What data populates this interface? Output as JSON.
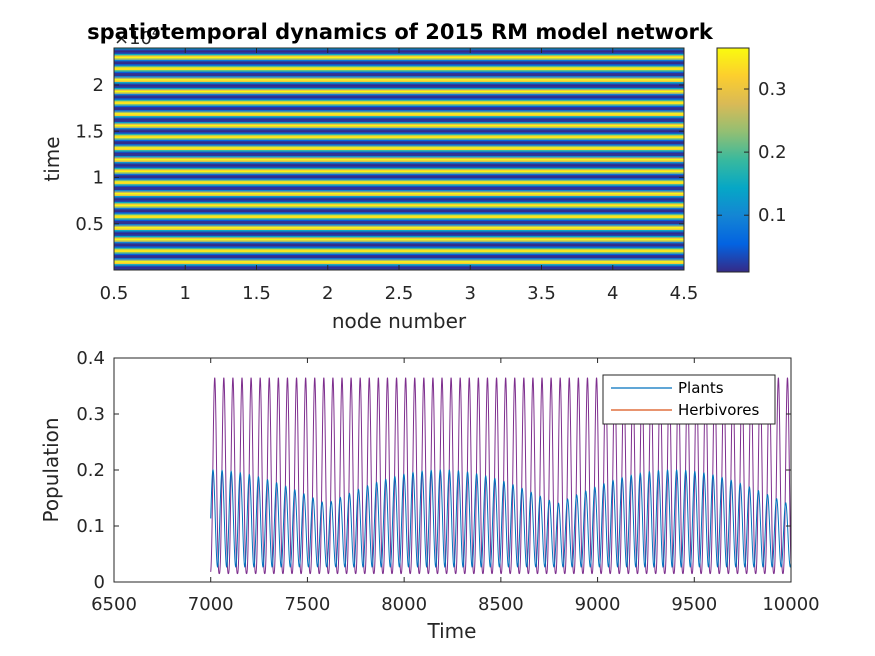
{
  "chart_data": [
    {
      "type": "heatmap",
      "title": "spatiotemporal dynamics of 2015 RM model network",
      "xlabel": "node number",
      "ylabel": "time",
      "y_exponent_label": "×10",
      "y_exponent": "4",
      "xlim": [
        0.5,
        4.5
      ],
      "ylim": [
        0,
        24000
      ],
      "x_ticks": [
        0.5,
        1,
        1.5,
        2,
        2.5,
        3,
        3.5,
        4,
        4.5
      ],
      "x_tick_labels": [
        "0.5",
        "1",
        "1.5",
        "2",
        "2.5",
        "3",
        "3.5",
        "4",
        "4.5"
      ],
      "y_ticks": [
        0.5,
        1,
        1.5,
        2
      ],
      "y_tick_labels": [
        "0.5",
        "1",
        "1.5",
        "2"
      ],
      "nodes": [
        1,
        2,
        3,
        4
      ],
      "colormap": "parula",
      "colorbar": {
        "range": [
          0.01,
          0.365
        ],
        "ticks": [
          0.1,
          0.2,
          0.3
        ],
        "tick_labels": [
          "0.1",
          "0.2",
          "0.3"
        ],
        "colors": [
          "#352a87",
          "#0363e1",
          "#1485d4",
          "#06a7c6",
          "#38b99e",
          "#92bf73",
          "#d9ba56",
          "#fcce2e",
          "#f9fb0e"
        ]
      },
      "pattern": "horizontal stripes; every node has the same value at each time step (synchronized oscillation between 0.01 and 0.365)"
    },
    {
      "type": "line",
      "xlabel": "Time",
      "ylabel": "Population",
      "xlim": [
        6500,
        10000
      ],
      "ylim": [
        0,
        0.4
      ],
      "x_ticks": [
        6500,
        7000,
        7500,
        8000,
        8500,
        9000,
        9500,
        10000
      ],
      "x_tick_labels": [
        "6500",
        "7000",
        "7500",
        "8000",
        "8500",
        "9000",
        "9500",
        "10000"
      ],
      "y_ticks": [
        0,
        0.1,
        0.2,
        0.3,
        0.4
      ],
      "y_tick_labels": [
        "0",
        "0.1",
        "0.2",
        "0.3",
        "0.4"
      ],
      "legend": {
        "position": "top-right",
        "entries": [
          "Plants",
          "Herbivores"
        ]
      },
      "series": [
        {
          "name": "Plants",
          "color": "#0072bd",
          "x_start": 7000,
          "x_end": 10000,
          "min": 0.012,
          "max": 0.2,
          "period_approx": 47
        },
        {
          "name": "Herbivores",
          "color": "#d95319",
          "x_start": 7000,
          "x_end": 10000,
          "min": 0.015,
          "max": 0.365,
          "period_approx": 47
        }
      ],
      "overlay_color": "#7e2f8e"
    }
  ]
}
